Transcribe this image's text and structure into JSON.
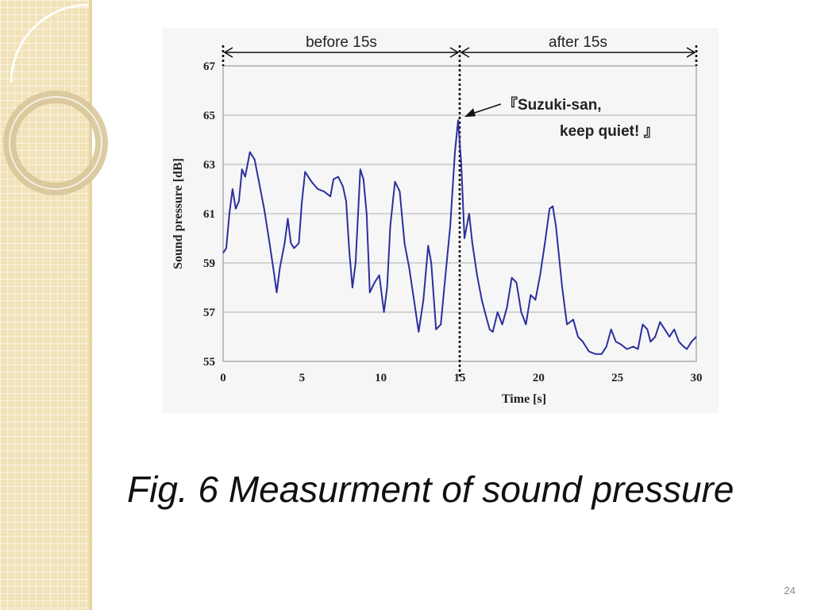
{
  "slide": {
    "caption": "Fig. 6  Measurment of sound pressure",
    "page_number": "24",
    "colors": {
      "side_panel": "#f1e2b8",
      "line": "#2b2f9e"
    }
  },
  "chart_data": {
    "type": "line",
    "title": "",
    "xlabel": "Time [s]",
    "ylabel": "Sound pressure [dB]",
    "xlim": [
      0,
      30
    ],
    "ylim": [
      55,
      67
    ],
    "x_ticks": [
      "0",
      "5",
      "10",
      "15",
      "20",
      "25",
      "30"
    ],
    "y_ticks": [
      "55",
      "57",
      "59",
      "61",
      "63",
      "65",
      "67"
    ],
    "grid": "horizontal",
    "annotations": {
      "before": "before 15s",
      "after": "after 15s",
      "quote_line1": "『Suzuki-san,",
      "quote_line2": "keep quiet! 』",
      "split_x": 15,
      "quote_point": [
        14.9,
        64.8
      ]
    },
    "series": [
      {
        "values": [
          [
            0.0,
            59.4
          ],
          [
            0.2,
            59.6
          ],
          [
            0.4,
            61.0
          ],
          [
            0.6,
            62.0
          ],
          [
            0.8,
            61.2
          ],
          [
            1.0,
            61.5
          ],
          [
            1.2,
            62.8
          ],
          [
            1.4,
            62.5
          ],
          [
            1.7,
            63.5
          ],
          [
            2.0,
            63.2
          ],
          [
            2.3,
            62.2
          ],
          [
            2.6,
            61.2
          ],
          [
            2.9,
            60.0
          ],
          [
            3.2,
            58.7
          ],
          [
            3.4,
            57.8
          ],
          [
            3.6,
            58.8
          ],
          [
            3.9,
            59.8
          ],
          [
            4.1,
            60.8
          ],
          [
            4.3,
            59.8
          ],
          [
            4.5,
            59.6
          ],
          [
            4.8,
            59.8
          ],
          [
            5.0,
            61.5
          ],
          [
            5.2,
            62.7
          ],
          [
            5.6,
            62.3
          ],
          [
            6.0,
            62.0
          ],
          [
            6.4,
            61.9
          ],
          [
            6.8,
            61.7
          ],
          [
            7.0,
            62.4
          ],
          [
            7.3,
            62.5
          ],
          [
            7.6,
            62.1
          ],
          [
            7.8,
            61.5
          ],
          [
            8.0,
            59.5
          ],
          [
            8.2,
            58.0
          ],
          [
            8.4,
            59.0
          ],
          [
            8.7,
            62.8
          ],
          [
            8.9,
            62.4
          ],
          [
            9.1,
            61.0
          ],
          [
            9.3,
            57.8
          ],
          [
            9.6,
            58.2
          ],
          [
            9.9,
            58.5
          ],
          [
            10.2,
            57.0
          ],
          [
            10.4,
            58.0
          ],
          [
            10.6,
            60.5
          ],
          [
            10.9,
            62.3
          ],
          [
            11.2,
            61.9
          ],
          [
            11.5,
            59.8
          ],
          [
            11.8,
            58.8
          ],
          [
            12.1,
            57.5
          ],
          [
            12.4,
            56.2
          ],
          [
            12.7,
            57.5
          ],
          [
            13.0,
            59.7
          ],
          [
            13.2,
            59.0
          ],
          [
            13.5,
            56.3
          ],
          [
            13.8,
            56.5
          ],
          [
            14.1,
            58.5
          ],
          [
            14.4,
            60.5
          ],
          [
            14.7,
            63.5
          ],
          [
            14.9,
            64.8
          ],
          [
            15.1,
            63.0
          ],
          [
            15.3,
            60.0
          ],
          [
            15.6,
            61.0
          ],
          [
            15.8,
            59.8
          ],
          [
            16.1,
            58.5
          ],
          [
            16.4,
            57.5
          ],
          [
            16.6,
            57.0
          ],
          [
            16.9,
            56.3
          ],
          [
            17.1,
            56.2
          ],
          [
            17.4,
            57.0
          ],
          [
            17.7,
            56.5
          ],
          [
            18.0,
            57.2
          ],
          [
            18.3,
            58.4
          ],
          [
            18.6,
            58.2
          ],
          [
            18.9,
            57.0
          ],
          [
            19.2,
            56.5
          ],
          [
            19.5,
            57.7
          ],
          [
            19.8,
            57.5
          ],
          [
            20.1,
            58.5
          ],
          [
            20.4,
            59.8
          ],
          [
            20.7,
            61.2
          ],
          [
            20.9,
            61.3
          ],
          [
            21.1,
            60.5
          ],
          [
            21.5,
            58.0
          ],
          [
            21.8,
            56.5
          ],
          [
            22.2,
            56.7
          ],
          [
            22.5,
            56.0
          ],
          [
            22.8,
            55.8
          ],
          [
            23.2,
            55.4
          ],
          [
            23.6,
            55.3
          ],
          [
            24.0,
            55.3
          ],
          [
            24.3,
            55.6
          ],
          [
            24.6,
            56.3
          ],
          [
            24.9,
            55.8
          ],
          [
            25.2,
            55.7
          ],
          [
            25.6,
            55.5
          ],
          [
            26.0,
            55.6
          ],
          [
            26.3,
            55.5
          ],
          [
            26.6,
            56.5
          ],
          [
            26.9,
            56.3
          ],
          [
            27.1,
            55.8
          ],
          [
            27.4,
            56.0
          ],
          [
            27.7,
            56.6
          ],
          [
            28.0,
            56.3
          ],
          [
            28.3,
            56.0
          ],
          [
            28.6,
            56.3
          ],
          [
            28.9,
            55.8
          ],
          [
            29.2,
            55.6
          ],
          [
            29.4,
            55.5
          ],
          [
            29.7,
            55.8
          ],
          [
            30.0,
            56.0
          ]
        ]
      }
    ]
  }
}
